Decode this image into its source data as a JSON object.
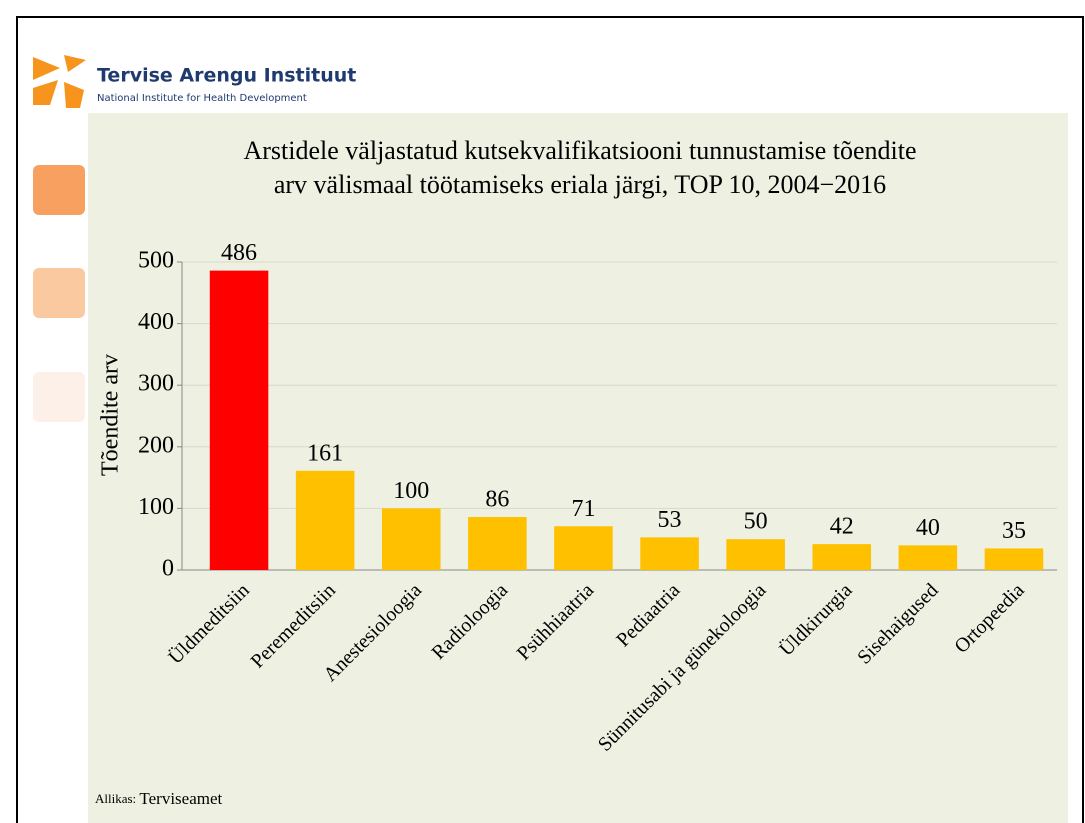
{
  "header": {
    "title": "Tervise Arengu Instituut",
    "subtitle": "National Institute for Health Development"
  },
  "chart_data": {
    "type": "bar",
    "title_lines": [
      "Arstidele väljastatud kutsekvalifikatsiooni tunnustamise tõendite",
      "arv välismaal töötamiseks eriala järgi, TOP 10, 2004−2016"
    ],
    "y_label": "Tõendite arv",
    "categories": [
      "Üldmeditsiin",
      "Peremeditsiin",
      "Anestesioloogia",
      "Radioloogia",
      "Psühhiaatria",
      "Pediaatria",
      "Sünnitusabi ja günekoloogia",
      "Üldkirurgia",
      "Sisehaigused",
      "Ortopeedia"
    ],
    "values": [
      486,
      161,
      100,
      86,
      71,
      53,
      50,
      42,
      40,
      35
    ],
    "colors": [
      "#ff0000",
      "#ffc000",
      "#ffc000",
      "#ffc000",
      "#ffc000",
      "#ffc000",
      "#ffc000",
      "#ffc000",
      "#ffc000",
      "#ffc000"
    ],
    "ylim": [
      0,
      500
    ],
    "yticks": [
      0,
      100,
      200,
      300,
      400,
      500
    ],
    "grid": true,
    "source_label": "Allikas:",
    "source": "Terviseamet"
  }
}
